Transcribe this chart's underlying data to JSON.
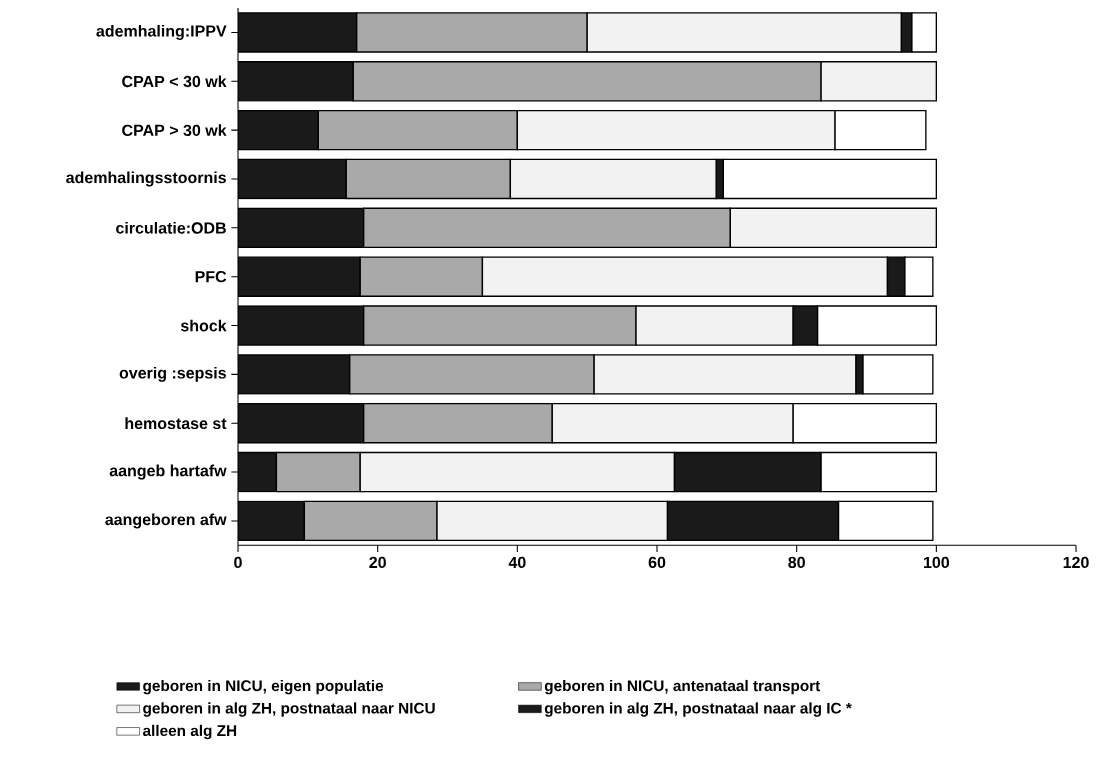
{
  "chart_data": {
    "type": "bar",
    "orientation": "horizontal",
    "stacked": true,
    "categories": [
      "ademhaling:IPPV",
      "CPAP < 30 wk",
      "CPAP > 30 wk",
      "ademhalingsstoornis",
      "circulatie:ODB",
      "PFC",
      "shock",
      "overig :sepsis",
      "hemostase st",
      "aangeb hartafw",
      "aangeboren afw"
    ],
    "series": [
      {
        "name": "geboren in NICU, eigen populatie",
        "color": "#1a1a1a",
        "values": [
          17,
          16.5,
          11.5,
          15.5,
          18,
          17.5,
          18,
          16,
          18,
          5.5,
          9.5
        ]
      },
      {
        "name": "geboren in NICU, antenataal transport",
        "color": "#a9a9a9",
        "values": [
          33,
          67,
          28.5,
          23.5,
          52.5,
          17.5,
          39,
          35,
          27,
          12,
          19
        ]
      },
      {
        "name": "geboren in alg ZH, postnataal naar NICU",
        "color": "#f2f2f2",
        "values": [
          45,
          16.5,
          45.5,
          29.5,
          29.5,
          58,
          22.5,
          37.5,
          34.5,
          45,
          33
        ]
      },
      {
        "name": "geboren in alg ZH, postnataal naar alg IC *",
        "color": "#1a1a1a",
        "values": [
          1.5,
          null,
          null,
          1,
          null,
          2.5,
          3.5,
          1,
          null,
          21,
          24.5
        ]
      },
      {
        "name": "alleen alg ZH",
        "color": "#ffffff",
        "values": [
          3.5,
          null,
          13,
          30.5,
          null,
          4,
          17,
          10,
          20.5,
          16.5,
          13.5
        ]
      }
    ],
    "xlim": [
      0,
      120
    ],
    "xticks": [
      0,
      20,
      40,
      60,
      80,
      100,
      120
    ],
    "legend": "bottom",
    "grid": false
  }
}
